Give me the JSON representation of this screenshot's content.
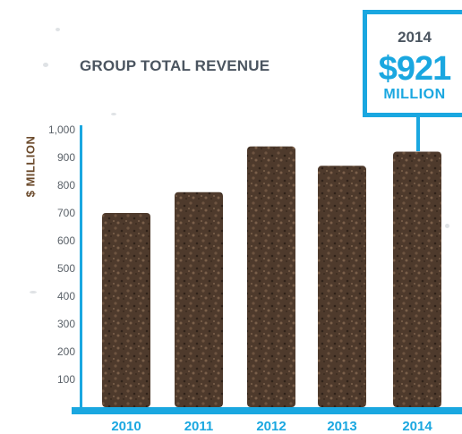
{
  "chart_data": {
    "type": "bar",
    "title": "GROUP TOTAL REVENUE",
    "xlabel": "",
    "ylabel": "$ MILLION",
    "categories": [
      "2010",
      "2011",
      "2012",
      "2013",
      "2014"
    ],
    "values": [
      700,
      775,
      940,
      870,
      921
    ],
    "ylim": [
      0,
      1000
    ],
    "yticks": [
      100,
      200,
      300,
      400,
      500,
      600,
      700,
      800,
      900,
      1000
    ],
    "ytick_labels": [
      "100",
      "200",
      "300",
      "400",
      "500",
      "600",
      "700",
      "800",
      "900",
      "1,000"
    ],
    "grid": false,
    "legend": "none",
    "annotation": {
      "category": "2014",
      "year": "2014",
      "value": "$921",
      "unit": "MILLION"
    }
  },
  "colors": {
    "accent": "#1aa7e0",
    "bar": "#4e3a2c",
    "title": "#4b5560",
    "ylabel": "#6b4a2b",
    "tick_text": "#5a6168"
  }
}
